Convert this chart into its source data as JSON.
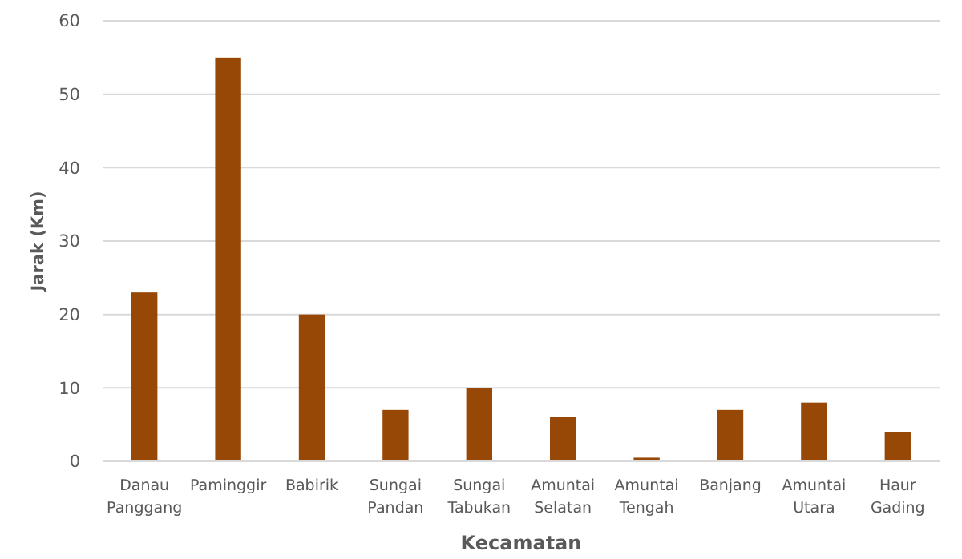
{
  "chart_data": {
    "type": "bar",
    "xlabel": "Kecamatan",
    "ylabel": "Jarak (Km)",
    "categories": [
      "Danau Panggang",
      "Paminggir",
      "Babirik",
      "Sungai Pandan",
      "Sungai Tabukan",
      "Amuntai Selatan",
      "Amuntai Tengah",
      "Banjang",
      "Amuntai Utara",
      "Haur Gading"
    ],
    "values": [
      23,
      55,
      20,
      7,
      10,
      6,
      0.5,
      7,
      8,
      4
    ],
    "color": "#974706",
    "ylim": [
      0,
      60
    ],
    "yticks": [
      0,
      10,
      20,
      30,
      40,
      50,
      60
    ],
    "grid": "y"
  }
}
